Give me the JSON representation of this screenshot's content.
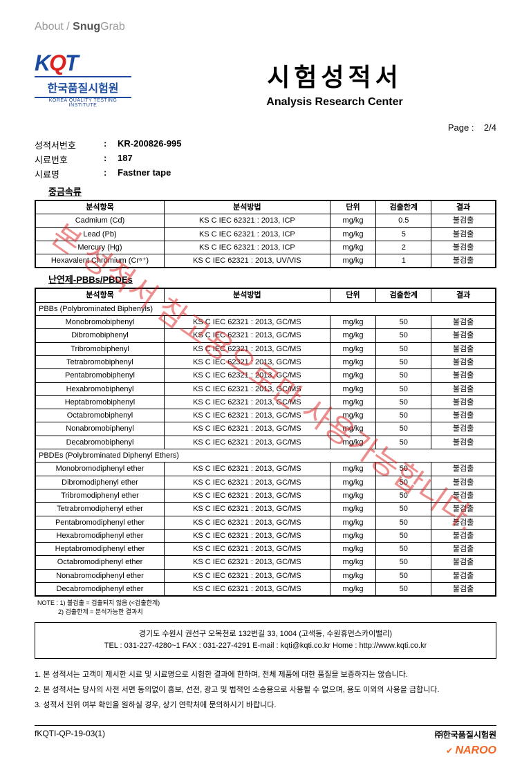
{
  "breadcrumb": {
    "pre": "About / ",
    "bold": "Snug",
    "suffix": "Grab"
  },
  "logo": {
    "text": "KQT",
    "korean": "한국품질시험원",
    "english": "KOREA QUALITY TESTING INSTITUTE"
  },
  "title": {
    "main": "시험성적서",
    "sub": "Analysis Research Center"
  },
  "page": {
    "label": "Page :",
    "value": "2/4"
  },
  "meta": [
    {
      "label": "성적서번호",
      "value": "KR-200826-995"
    },
    {
      "label": "시료번호",
      "value": "187"
    },
    {
      "label": "시료명",
      "value": "Fastner tape"
    }
  ],
  "section1": {
    "title": "중금속류",
    "headers": [
      "분석항목",
      "분석방법",
      "단위",
      "검출한계",
      "결과"
    ],
    "rows": [
      [
        "Cadmium (Cd)",
        "KS C IEC 62321 : 2013, ICP",
        "mg/kg",
        "0.5",
        "불검출"
      ],
      [
        "Lead (Pb)",
        "KS C IEC 62321 : 2013, ICP",
        "mg/kg",
        "5",
        "불검출"
      ],
      [
        "Mercury (Hg)",
        "KS C IEC 62321 : 2013, ICP",
        "mg/kg",
        "2",
        "불검출"
      ],
      [
        "Hexavalent Chromium (Cr⁶⁺)",
        "KS C IEC 62321 : 2013, UV/VIS",
        "mg/kg",
        "1",
        "불검출"
      ]
    ]
  },
  "section2": {
    "title": "난연제-PBBs/PBDEs",
    "headers": [
      "분석항목",
      "분석방법",
      "단위",
      "검출한계",
      "결과"
    ],
    "sub1": "PBBs (Polybrominated Biphenyls)",
    "rows1": [
      [
        "Monobromobiphenyl",
        "KS C IEC 62321 : 2013, GC/MS",
        "mg/kg",
        "50",
        "불검출"
      ],
      [
        "Dibromobiphenyl",
        "KS C IEC 62321 : 2013, GC/MS",
        "mg/kg",
        "50",
        "불검출"
      ],
      [
        "Tribromobiphenyl",
        "KS C IEC 62321 : 2013, GC/MS",
        "mg/kg",
        "50",
        "불검출"
      ],
      [
        "Tetrabromobiphenyl",
        "KS C IEC 62321 : 2013, GC/MS",
        "mg/kg",
        "50",
        "불검출"
      ],
      [
        "Pentabromobiphenyl",
        "KS C IEC 62321 : 2013, GC/MS",
        "mg/kg",
        "50",
        "불검출"
      ],
      [
        "Hexabromobiphenyl",
        "KS C IEC 62321 : 2013, GC/MS",
        "mg/kg",
        "50",
        "불검출"
      ],
      [
        "Heptabromobiphenyl",
        "KS C IEC 62321 : 2013, GC/MS",
        "mg/kg",
        "50",
        "불검출"
      ],
      [
        "Octabromobiphenyl",
        "KS C IEC 62321 : 2013, GC/MS",
        "mg/kg",
        "50",
        "불검출"
      ],
      [
        "Nonabromobiphenyl",
        "KS C IEC 62321 : 2013, GC/MS",
        "mg/kg",
        "50",
        "불검출"
      ],
      [
        "Decabromobiphenyl",
        "KS C IEC 62321 : 2013, GC/MS",
        "mg/kg",
        "50",
        "불검출"
      ]
    ],
    "sub2": "PBDEs (Polybrominated Diphenyl Ethers)",
    "rows2": [
      [
        "Monobromodiphenyl ether",
        "KS C IEC 62321 : 2013, GC/MS",
        "mg/kg",
        "50",
        "불검출"
      ],
      [
        "Dibromodiphenyl ether",
        "KS C IEC 62321 : 2013, GC/MS",
        "mg/kg",
        "50",
        "불검출"
      ],
      [
        "Tribromodiphenyl ether",
        "KS C IEC 62321 : 2013, GC/MS",
        "mg/kg",
        "50",
        "불검출"
      ],
      [
        "Tetrabromodiphenyl ether",
        "KS C IEC 62321 : 2013, GC/MS",
        "mg/kg",
        "50",
        "불검출"
      ],
      [
        "Pentabromodiphenyl ether",
        "KS C IEC 62321 : 2013, GC/MS",
        "mg/kg",
        "50",
        "불검출"
      ],
      [
        "Hexabromodiphenyl ether",
        "KS C IEC 62321 : 2013, GC/MS",
        "mg/kg",
        "50",
        "불검출"
      ],
      [
        "Heptabromodiphenyl ether",
        "KS C IEC 62321 : 2013, GC/MS",
        "mg/kg",
        "50",
        "불검출"
      ],
      [
        "Octabromodiphenyl ether",
        "KS C IEC 62321 : 2013, GC/MS",
        "mg/kg",
        "50",
        "불검출"
      ],
      [
        "Nonabromodiphenyl ether",
        "KS C IEC 62321 : 2013, GC/MS",
        "mg/kg",
        "50",
        "불검출"
      ],
      [
        "Decabromodiphenyl ether",
        "KS C IEC 62321 : 2013, GC/MS",
        "mg/kg",
        "50",
        "불검출"
      ]
    ]
  },
  "note": "NOTE : 1) 불검출 = 검출되지 않음 (<검출한계)\n            2) 검출한계 = 분석가능한 결과치",
  "contact": {
    "line1": "경기도 수원시 권선구 오목천로 132번길 33, 1004 (고색동, 수원휴먼스카이밸리)",
    "line2": "TEL : 031-227-4280~1   FAX : 031-227-4291   E-mail : kqti@kqti.co.kr   Home : http://www.kqti.co.kr"
  },
  "disclaimers": [
    "1. 본 성적서는 고객이 제시한 시료 및 시료명으로 시험한 결과에 한하며, 전체 제품에 대한 품질을 보증하지는 않습니다.",
    "2. 본 성적서는 당사의 사전 서면 동의없이 홍보, 선전, 광고 및 법적인 소송용으로 사용될 수 없으며, 용도 이외의 사용을 금합니다.",
    "3. 성적서 진위 여부 확인을 원하실 경우, 상기 연락처에 문의하시기 바랍니다."
  ],
  "footer": {
    "left": "fKQTI-QP-19-03(1)",
    "right": "㈜한국품질시험원"
  },
  "naroo": "NAROO",
  "watermark": "본 성적서 참고용으로만 사용가능합니다."
}
